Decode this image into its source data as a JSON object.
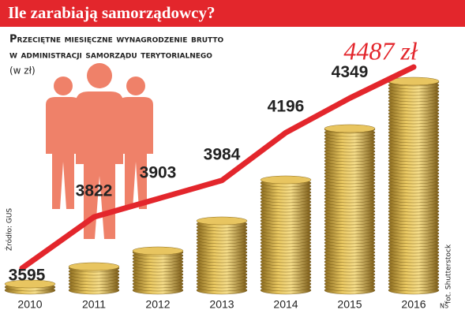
{
  "chart_data": {
    "type": "line",
    "title": "Ile zarabiają samorządowcy?",
    "subtitle": [
      "Przeciętne miesięczne wynagrodzenie brutto",
      "w administracji samorządu terytorialnego"
    ],
    "unit_note": "(w zł)",
    "source": "Źródło: GUS",
    "photo_credit": "fot. Shutterstock",
    "author": "NS",
    "categories": [
      "2010",
      "2011",
      "2012",
      "2013",
      "2014",
      "2015",
      "2016"
    ],
    "values": [
      3595,
      3822,
      3903,
      3984,
      4196,
      4349,
      4487
    ],
    "value_labels": [
      "3595",
      "3822",
      "3903",
      "3984",
      "4196",
      "4349",
      "4487 zł"
    ],
    "color": "#e3262c"
  }
}
